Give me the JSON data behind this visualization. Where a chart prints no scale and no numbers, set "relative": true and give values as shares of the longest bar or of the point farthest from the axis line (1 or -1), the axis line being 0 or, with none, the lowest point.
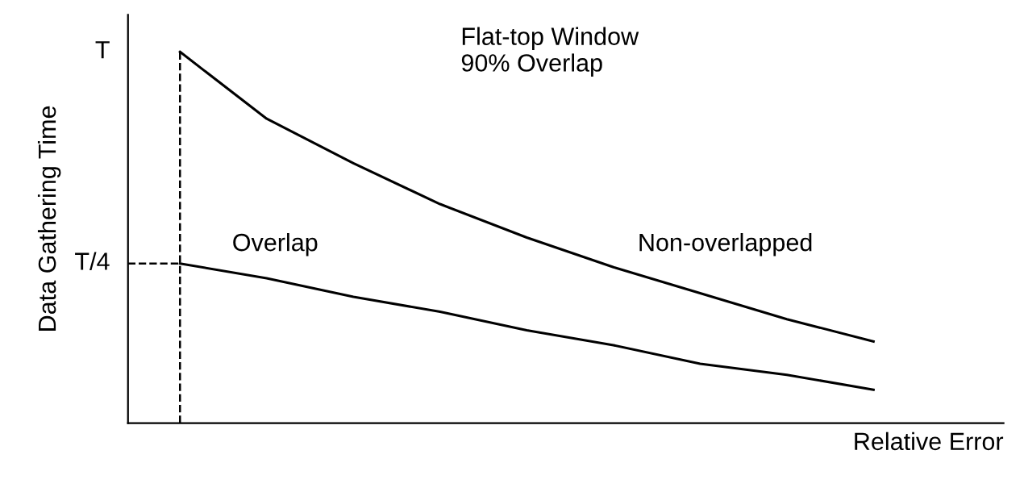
{
  "chart_data": {
    "type": "line",
    "relative": true,
    "xlabel": "Relative Error",
    "ylabel": "Data Gathering Time",
    "categories": [
      null,
      null,
      null,
      null,
      null,
      null,
      null,
      null,
      null
    ],
    "series": [
      {
        "name": "Non-overlapped",
        "color": "#000000",
        "values": [
          1.0,
          0.82,
          0.7,
          0.59,
          0.5,
          0.42,
          0.35,
          0.28,
          0.22
        ]
      },
      {
        "name": "Overlap",
        "color": "#000000",
        "values": [
          0.43,
          0.39,
          0.34,
          0.3,
          0.25,
          0.21,
          0.16,
          0.13,
          0.09
        ]
      }
    ],
    "annotations": [
      "Flat-top Window\n90% Overlap",
      "T",
      "T/4"
    ],
    "legend": false,
    "marker": "none",
    "line_style": "solid"
  }
}
